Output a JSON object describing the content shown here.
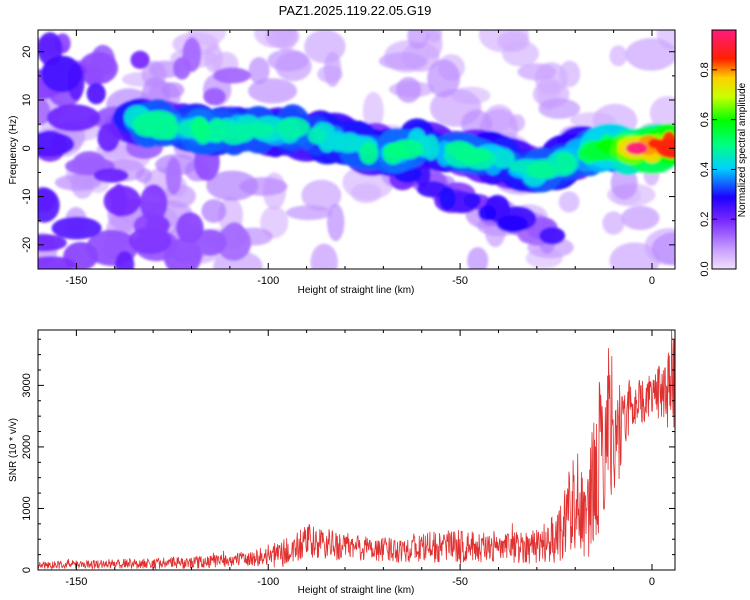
{
  "figure": {
    "title": "PAZ1.2025.119.22.05.G19"
  },
  "chart_data": [
    {
      "type": "heatmap",
      "xlabel": "Height of straight line (km)",
      "ylabel": "Frequency (Hz)",
      "xlim": [
        -160,
        6
      ],
      "ylim": [
        -25,
        24.5
      ],
      "x_ticks": [
        -150,
        -100,
        -50,
        0
      ],
      "y_ticks": [
        -20,
        -10,
        0,
        10,
        20
      ],
      "colorbar": {
        "label": "Normalized spectral amplitude",
        "range": [
          0,
          0.96
        ],
        "ticks": [
          0.0,
          0.2,
          0.4,
          0.6,
          0.8
        ],
        "colormap": "rainbow (light purple → blue → cyan → green → yellow → red → magenta)"
      },
      "ridge": {
        "description": "dominant frequency vs height",
        "x": [
          -132,
          -120,
          -110,
          -100,
          -90,
          -80,
          -70,
          -60,
          -50,
          -40,
          -30,
          -20,
          -10,
          0,
          5
        ],
        "y": [
          6,
          4,
          4,
          3.5,
          3,
          2,
          -1,
          1,
          -1,
          -2,
          -5,
          -1,
          0,
          0,
          0
        ]
      },
      "peak": {
        "x": -4,
        "y": 0,
        "value": 0.96
      }
    },
    {
      "type": "line",
      "xlabel": "Height of straight line (km)",
      "ylabel": "SNR (10 * v/v)",
      "xlim": [
        -160,
        6
      ],
      "ylim": [
        0,
        3900
      ],
      "x_ticks": [
        -150,
        -100,
        -50,
        0
      ],
      "y_ticks": [
        0,
        1000,
        2000,
        3000
      ],
      "color": "#e03030",
      "envelope": {
        "x": [
          -160,
          -140,
          -120,
          -105,
          -95,
          -90,
          -80,
          -70,
          -60,
          -50,
          -40,
          -30,
          -25,
          -20,
          -17,
          -15,
          -13,
          -11,
          -9,
          -7,
          -5,
          -2,
          0,
          3,
          6
        ],
        "mean": [
          80,
          100,
          120,
          180,
          280,
          450,
          380,
          330,
          360,
          380,
          350,
          400,
          500,
          1200,
          700,
          1500,
          2000,
          2500,
          2200,
          2500,
          2700,
          2750,
          2850,
          2900,
          3000
        ],
        "spread": [
          60,
          80,
          100,
          120,
          250,
          280,
          240,
          200,
          250,
          280,
          230,
          300,
          400,
          900,
          600,
          1200,
          1300,
          1300,
          900,
          600,
          400,
          350,
          350,
          500,
          900
        ]
      }
    }
  ]
}
